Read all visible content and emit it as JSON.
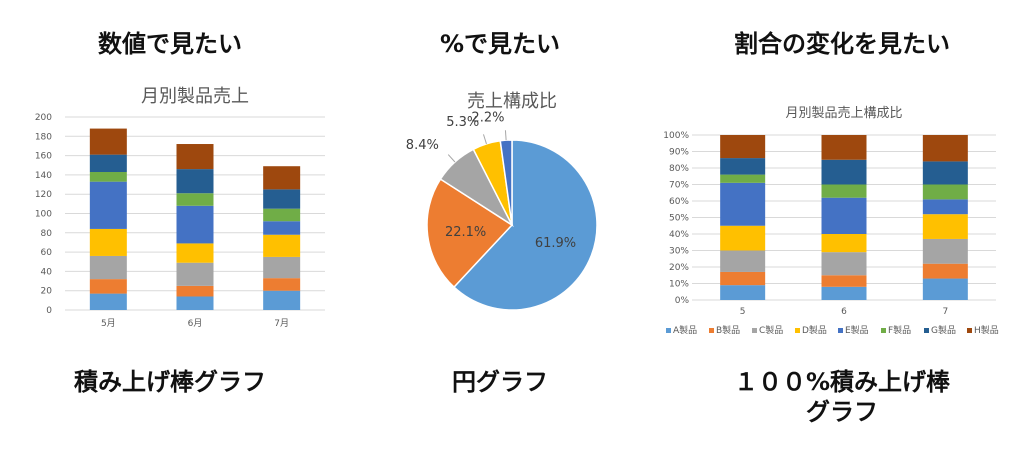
{
  "panels": [
    {
      "heading": "数値で見たい",
      "caption_lines": [
        "積み上げ棒グラフ"
      ]
    },
    {
      "heading": "%で見たい",
      "caption_lines": [
        "円グラフ"
      ]
    },
    {
      "heading": "割合の変化を見たい",
      "caption_lines": [
        "１００%積み上げ棒",
        "グラフ"
      ]
    }
  ],
  "colors": {
    "A製品": "#5B9BD5",
    "B製品": "#ED7D31",
    "C製品": "#A5A5A5",
    "D製品": "#FFC000",
    "E製品": "#4472C4",
    "F製品": "#70AD47",
    "G製品": "#255E91",
    "H製品": "#9E480E"
  },
  "chart_data": [
    {
      "type": "bar",
      "stacked": true,
      "title": "月別製品売上",
      "categories": [
        "5月",
        "6月",
        "7月"
      ],
      "ylim": [
        0,
        200
      ],
      "yticks": [
        0,
        20,
        40,
        60,
        80,
        100,
        120,
        140,
        160,
        180,
        200
      ],
      "grid": true,
      "legend": "none",
      "series": [
        {
          "key": "A製品",
          "values": [
            17,
            14,
            20
          ]
        },
        {
          "key": "B製品",
          "values": [
            15,
            11,
            13
          ]
        },
        {
          "key": "C製品",
          "values": [
            24,
            24,
            22
          ]
        },
        {
          "key": "D製品",
          "values": [
            28,
            20,
            23
          ]
        },
        {
          "key": "E製品",
          "values": [
            49,
            39,
            14
          ]
        },
        {
          "key": "F製品",
          "values": [
            10,
            13,
            13
          ]
        },
        {
          "key": "G製品",
          "values": [
            18,
            25,
            20
          ]
        },
        {
          "key": "H製品",
          "values": [
            27,
            26,
            24
          ]
        }
      ]
    },
    {
      "type": "pie",
      "title": "売上構成比",
      "slices": [
        {
          "key": "A製品",
          "value": 61.9,
          "label": "61.9%"
        },
        {
          "key": "B製品",
          "value": 22.1,
          "label": "22.1%"
        },
        {
          "key": "C製品",
          "value": 8.4,
          "label": "8.4%"
        },
        {
          "key": "D製品",
          "value": 5.3,
          "label": "5.3%"
        },
        {
          "key": "E製品",
          "value": 2.2,
          "label": "2.2%"
        }
      ]
    },
    {
      "type": "bar",
      "stacked": "percent",
      "title": "月別製品売上構成比",
      "categories": [
        "5",
        "6",
        "7"
      ],
      "ylim": [
        0,
        100
      ],
      "yticks": [
        "0%",
        "10%",
        "20%",
        "30%",
        "40%",
        "50%",
        "60%",
        "70%",
        "80%",
        "90%",
        "100%"
      ],
      "grid": true,
      "legend": "bottom",
      "legend_entries": [
        "A製品",
        "B製品",
        "C製品",
        "D製品",
        "E製品",
        "F製品",
        "G製品",
        "H製品"
      ],
      "series": [
        {
          "key": "A製品",
          "values": [
            9,
            8,
            13
          ]
        },
        {
          "key": "B製品",
          "values": [
            8,
            7,
            9
          ]
        },
        {
          "key": "C製品",
          "values": [
            13,
            14,
            15
          ]
        },
        {
          "key": "D製品",
          "values": [
            15,
            11,
            15
          ]
        },
        {
          "key": "E製品",
          "values": [
            26,
            22,
            9
          ]
        },
        {
          "key": "F製品",
          "values": [
            5,
            8,
            9
          ]
        },
        {
          "key": "G製品",
          "values": [
            10,
            15,
            14
          ]
        },
        {
          "key": "H製品",
          "values": [
            14,
            15,
            16
          ]
        }
      ]
    }
  ]
}
